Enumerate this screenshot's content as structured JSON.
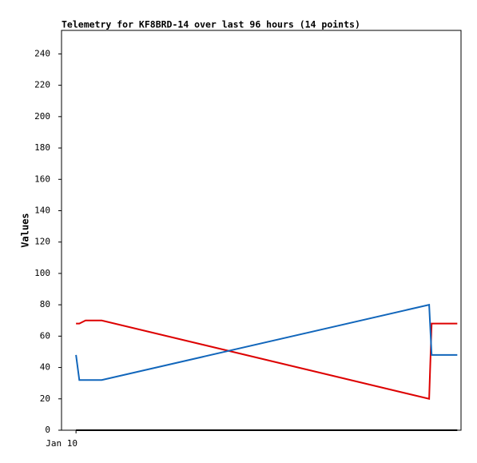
{
  "chart_data": {
    "type": "line",
    "title": "Telemetry for KF8BRD-14 over last 96 hours (14 points)",
    "y_label": "Values",
    "x": [
      0,
      0.8,
      2.3,
      6.2,
      85.3,
      85.9,
      92.1
    ],
    "xlim": [
      -3.5,
      93
    ],
    "xticks": [
      {
        "value": 0,
        "label": "Jan 10"
      }
    ],
    "ylim": [
      0,
      255
    ],
    "yticks": [
      0,
      20,
      40,
      60,
      80,
      100,
      120,
      140,
      160,
      180,
      200,
      220,
      240
    ],
    "series": [
      {
        "color": "#000000",
        "values": [
          0,
          0,
          0,
          0,
          0,
          0,
          0
        ]
      },
      {
        "color": "#dd0000",
        "values": [
          68,
          68,
          70,
          70,
          20,
          68,
          68
        ]
      },
      {
        "color": "#1166bb",
        "values": [
          48,
          32,
          32,
          32,
          80,
          48,
          48
        ]
      }
    ]
  }
}
